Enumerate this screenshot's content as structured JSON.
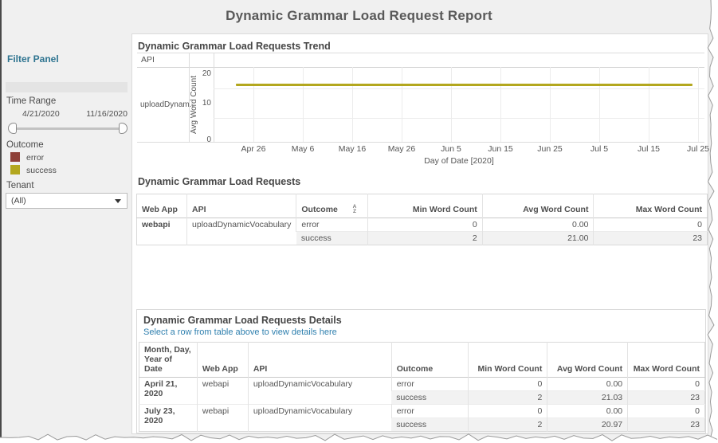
{
  "page": {
    "title": "Dynamic Grammar Load Request Report"
  },
  "colors": {
    "error": "#8e4038",
    "success": "#b3a71e",
    "accent_teal": "#2e7490",
    "link_blue": "#2e7fae"
  },
  "sidebar": {
    "filter_panel_label": "Filter Panel",
    "time_range": {
      "label": "Time Range",
      "start": "4/21/2020",
      "end": "11/16/2020"
    },
    "outcome_legend": {
      "label": "Outcome",
      "items": [
        {
          "label": "error",
          "color": "#8e4038"
        },
        {
          "label": "success",
          "color": "#b3a71e"
        }
      ]
    },
    "tenant": {
      "label": "Tenant",
      "value": "(All)"
    }
  },
  "trend": {
    "title": "Dynamic Grammar Load Requests Trend",
    "row_header": "API",
    "row_label": "uploadDynam..",
    "ylabel": "Avg Word Count",
    "yticks": [
      "20",
      "10",
      "0"
    ],
    "xticks": [
      "Apr 26",
      "May 6",
      "May 16",
      "May 26",
      "Jun 5",
      "Jun 15",
      "Jun 25",
      "Jul 5",
      "Jul 15",
      "Jul 25"
    ],
    "xlabel": "Day of Date [2020]"
  },
  "chart_data": {
    "type": "line",
    "title": "Dynamic Grammar Load Requests Trend",
    "xlabel": "Day of Date [2020]",
    "ylabel": "Avg Word Count",
    "ylim": [
      0,
      25
    ],
    "yticks": [
      0,
      10,
      20
    ],
    "xticks": [
      "Apr 26",
      "May 6",
      "May 16",
      "May 26",
      "Jun 5",
      "Jun 15",
      "Jun 25",
      "Jul 5",
      "Jul 15",
      "Jul 25"
    ],
    "x_range": [
      "Apr 21 2020",
      "Jul 23 2020"
    ],
    "series": [
      {
        "name": "success",
        "color": "#b3a71e",
        "values_note": "flat line at avg word count ~21 from Apr 21 to Jul 23",
        "value": 21
      },
      {
        "name": "error",
        "color": "#8e4038",
        "values_note": "flat line at avg word count ~0 from Apr 21 to Jul 23",
        "value": 0
      }
    ],
    "legend_position": "left-sidebar",
    "grid": true
  },
  "summary_table": {
    "title": "Dynamic Grammar Load Requests",
    "columns": [
      "Web App",
      "API",
      "Outcome",
      "Min Word Count",
      "Avg Word Count",
      "Max Word Count"
    ],
    "sort_icon": {
      "top": "A",
      "bottom": "Z"
    },
    "rows": [
      {
        "web_app": "webapi",
        "api": "uploadDynamicVocabulary",
        "outcome": "error",
        "min": "0",
        "avg": "0.00",
        "max": "0"
      },
      {
        "outcome": "success",
        "min": "2",
        "avg": "21.00",
        "max": "23"
      }
    ]
  },
  "details": {
    "title": "Dynamic Grammar Load Requests Details",
    "link": "Select a row from table above to view details here",
    "columns": [
      "Month, Day, Year of Date",
      "Web App",
      "API",
      "Outcome",
      "Min Word Count",
      "Avg Word Count",
      "Max Word Count"
    ],
    "rows": [
      {
        "date": "April 21, 2020",
        "web_app": "webapi",
        "api": "uploadDynamicVocabulary",
        "outcome": "error",
        "min": "0",
        "avg": "0.00",
        "max": "0"
      },
      {
        "outcome": "success",
        "min": "2",
        "avg": "21.03",
        "max": "23"
      },
      {
        "date": "July 23, 2020",
        "web_app": "webapi",
        "api": "uploadDynamicVocabulary",
        "outcome": "error",
        "min": "0",
        "avg": "0.00",
        "max": "0"
      },
      {
        "outcome": "success",
        "min": "2",
        "avg": "20.97",
        "max": "23"
      }
    ]
  }
}
